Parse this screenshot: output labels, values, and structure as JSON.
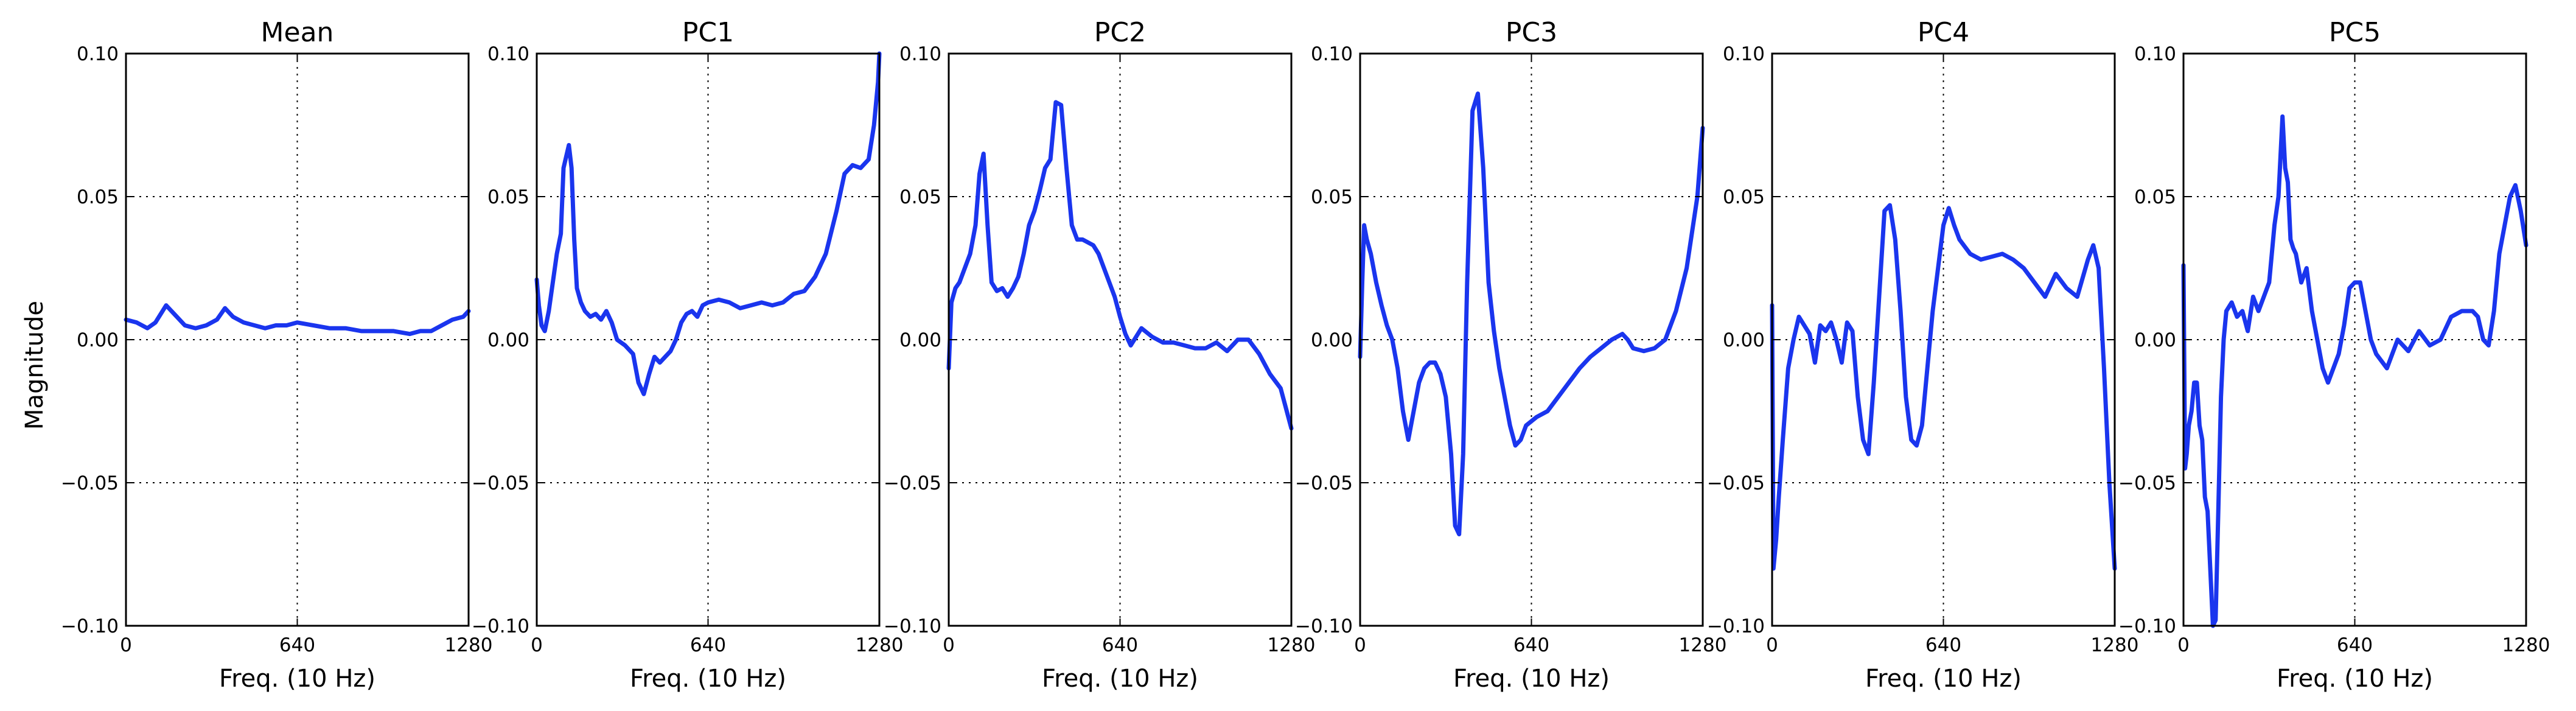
{
  "figure": {
    "ylabel": "Magnitude",
    "line_color": "#1a35ee"
  },
  "chart_data": [
    {
      "type": "line",
      "title": "Mean",
      "xlabel": "Freq. (10 Hz)",
      "ylabel": "Magnitude",
      "xlim": [
        0,
        1280
      ],
      "ylim": [
        -0.1,
        0.1
      ],
      "xticks": [
        "0",
        "640",
        "1280"
      ],
      "yticks": [
        "0.10",
        "0.05",
        "0.00",
        "−0.05",
        "−0.10"
      ],
      "grid": true,
      "x": [
        0,
        40,
        80,
        110,
        150,
        180,
        220,
        260,
        300,
        340,
        370,
        400,
        440,
        480,
        520,
        560,
        600,
        640,
        700,
        760,
        820,
        880,
        940,
        1000,
        1060,
        1100,
        1140,
        1180,
        1220,
        1260,
        1280
      ],
      "y": [
        0.007,
        0.006,
        0.004,
        0.006,
        0.012,
        0.009,
        0.005,
        0.004,
        0.005,
        0.007,
        0.011,
        0.008,
        0.006,
        0.005,
        0.004,
        0.005,
        0.005,
        0.006,
        0.005,
        0.004,
        0.004,
        0.003,
        0.003,
        0.003,
        0.002,
        0.003,
        0.003,
        0.005,
        0.007,
        0.008,
        0.01
      ]
    },
    {
      "type": "line",
      "title": "PC1",
      "xlabel": "Freq. (10 Hz)",
      "xlim": [
        0,
        1280
      ],
      "ylim": [
        -0.1,
        0.1
      ],
      "xticks": [
        "0",
        "640",
        "1280"
      ],
      "yticks": [
        "0.10",
        "0.05",
        "0.00",
        "−0.05",
        "−0.10"
      ],
      "grid": true,
      "x": [
        0,
        8,
        18,
        30,
        45,
        60,
        75,
        90,
        100,
        110,
        120,
        130,
        140,
        150,
        165,
        180,
        200,
        220,
        240,
        260,
        280,
        300,
        330,
        360,
        380,
        400,
        420,
        440,
        460,
        480,
        500,
        520,
        540,
        560,
        580,
        600,
        620,
        640,
        680,
        720,
        760,
        800,
        840,
        880,
        920,
        960,
        1000,
        1040,
        1080,
        1120,
        1150,
        1180,
        1210,
        1240,
        1260,
        1275,
        1280
      ],
      "y": [
        0.021,
        0.012,
        0.005,
        0.003,
        0.01,
        0.02,
        0.03,
        0.037,
        0.06,
        0.064,
        0.068,
        0.06,
        0.035,
        0.018,
        0.013,
        0.01,
        0.008,
        0.009,
        0.007,
        0.01,
        0.006,
        0.0,
        -0.002,
        -0.005,
        -0.015,
        -0.019,
        -0.012,
        -0.006,
        -0.008,
        -0.006,
        -0.004,
        0.0,
        0.006,
        0.009,
        0.01,
        0.008,
        0.012,
        0.013,
        0.014,
        0.013,
        0.011,
        0.012,
        0.013,
        0.012,
        0.013,
        0.016,
        0.017,
        0.022,
        0.03,
        0.045,
        0.058,
        0.061,
        0.06,
        0.063,
        0.075,
        0.09,
        0.1
      ]
    },
    {
      "type": "line",
      "title": "PC2",
      "xlabel": "Freq. (10 Hz)",
      "xlim": [
        0,
        1280
      ],
      "ylim": [
        -0.1,
        0.1
      ],
      "xticks": [
        "0",
        "640",
        "1280"
      ],
      "yticks": [
        "0.10",
        "0.05",
        "0.00",
        "−0.05",
        "−0.10"
      ],
      "grid": true,
      "x": [
        0,
        10,
        25,
        40,
        60,
        80,
        100,
        115,
        130,
        145,
        160,
        180,
        200,
        220,
        240,
        260,
        280,
        300,
        320,
        340,
        360,
        380,
        400,
        420,
        440,
        460,
        480,
        500,
        520,
        540,
        560,
        580,
        600,
        620,
        640,
        660,
        680,
        720,
        760,
        800,
        840,
        880,
        920,
        960,
        1000,
        1040,
        1080,
        1120,
        1160,
        1200,
        1240,
        1280
      ],
      "y": [
        -0.01,
        0.013,
        0.018,
        0.02,
        0.025,
        0.03,
        0.04,
        0.058,
        0.065,
        0.04,
        0.02,
        0.017,
        0.018,
        0.015,
        0.018,
        0.022,
        0.03,
        0.04,
        0.045,
        0.052,
        0.06,
        0.063,
        0.083,
        0.082,
        0.06,
        0.04,
        0.035,
        0.035,
        0.034,
        0.033,
        0.03,
        0.025,
        0.02,
        0.015,
        0.008,
        0.002,
        -0.002,
        0.004,
        0.001,
        -0.001,
        -0.001,
        -0.002,
        -0.003,
        -0.003,
        -0.001,
        -0.004,
        0.0,
        0.0,
        -0.005,
        -0.012,
        -0.017,
        -0.031
      ]
    },
    {
      "type": "line",
      "title": "PC3",
      "xlabel": "Freq. (10 Hz)",
      "xlim": [
        0,
        1280
      ],
      "ylim": [
        -0.1,
        0.1
      ],
      "xticks": [
        "0",
        "640",
        "1280"
      ],
      "yticks": [
        "0.10",
        "0.05",
        "0.00",
        "−0.05",
        "−0.10"
      ],
      "grid": true,
      "x": [
        0,
        8,
        15,
        25,
        40,
        60,
        80,
        100,
        120,
        140,
        160,
        180,
        200,
        220,
        240,
        260,
        280,
        300,
        320,
        340,
        355,
        370,
        385,
        400,
        420,
        440,
        460,
        480,
        500,
        520,
        540,
        560,
        580,
        600,
        620,
        660,
        700,
        740,
        780,
        820,
        860,
        900,
        940,
        980,
        1000,
        1020,
        1060,
        1100,
        1140,
        1180,
        1220,
        1260,
        1280
      ],
      "y": [
        -0.006,
        0.02,
        0.04,
        0.035,
        0.03,
        0.02,
        0.012,
        0.005,
        0.0,
        -0.01,
        -0.025,
        -0.035,
        -0.025,
        -0.015,
        -0.01,
        -0.008,
        -0.008,
        -0.012,
        -0.02,
        -0.04,
        -0.065,
        -0.068,
        -0.04,
        0.02,
        0.08,
        0.086,
        0.06,
        0.02,
        0.003,
        -0.01,
        -0.02,
        -0.03,
        -0.037,
        -0.035,
        -0.03,
        -0.027,
        -0.025,
        -0.02,
        -0.015,
        -0.01,
        -0.006,
        -0.003,
        0.0,
        0.002,
        0.0,
        -0.003,
        -0.004,
        -0.003,
        0.0,
        0.01,
        0.025,
        0.05,
        0.074
      ]
    },
    {
      "type": "line",
      "title": "PC4",
      "xlabel": "Freq. (10 Hz)",
      "xlim": [
        0,
        1280
      ],
      "ylim": [
        -0.1,
        0.1
      ],
      "xticks": [
        "0",
        "640",
        "1280"
      ],
      "yticks": [
        "0.10",
        "0.05",
        "0.00",
        "−0.05",
        "−0.10"
      ],
      "grid": true,
      "x": [
        0,
        5,
        15,
        25,
        40,
        60,
        80,
        100,
        120,
        140,
        160,
        180,
        200,
        220,
        240,
        260,
        280,
        300,
        320,
        340,
        360,
        380,
        400,
        420,
        440,
        460,
        480,
        500,
        520,
        540,
        560,
        580,
        600,
        620,
        640,
        660,
        680,
        700,
        740,
        780,
        820,
        860,
        900,
        940,
        980,
        1020,
        1060,
        1100,
        1140,
        1180,
        1200,
        1220,
        1240,
        1260,
        1280
      ],
      "y": [
        0.012,
        -0.08,
        -0.07,
        -0.055,
        -0.035,
        -0.01,
        0.0,
        0.008,
        0.005,
        0.002,
        -0.008,
        0.005,
        0.003,
        0.006,
        0.0,
        -0.008,
        0.006,
        0.003,
        -0.02,
        -0.035,
        -0.04,
        -0.015,
        0.015,
        0.045,
        0.047,
        0.035,
        0.01,
        -0.02,
        -0.035,
        -0.037,
        -0.03,
        -0.01,
        0.01,
        0.025,
        0.04,
        0.046,
        0.04,
        0.035,
        0.03,
        0.028,
        0.029,
        0.03,
        0.028,
        0.025,
        0.02,
        0.015,
        0.023,
        0.018,
        0.015,
        0.028,
        0.033,
        0.025,
        -0.01,
        -0.05,
        -0.08
      ]
    },
    {
      "type": "line",
      "title": "PC5",
      "xlabel": "Freq. (10 Hz)",
      "xlim": [
        0,
        1280
      ],
      "ylim": [
        -0.1,
        0.1
      ],
      "xticks": [
        "0",
        "640",
        "1280"
      ],
      "yticks": [
        "0.10",
        "0.05",
        "0.00",
        "−0.05",
        "−0.10"
      ],
      "grid": true,
      "x": [
        0,
        6,
        12,
        20,
        30,
        40,
        50,
        60,
        70,
        80,
        90,
        100,
        110,
        120,
        130,
        140,
        150,
        160,
        180,
        200,
        220,
        240,
        260,
        280,
        300,
        320,
        340,
        355,
        370,
        380,
        390,
        400,
        410,
        420,
        440,
        460,
        480,
        500,
        520,
        540,
        560,
        580,
        600,
        620,
        640,
        660,
        680,
        700,
        720,
        760,
        800,
        840,
        880,
        920,
        960,
        1000,
        1040,
        1080,
        1100,
        1120,
        1140,
        1160,
        1180,
        1200,
        1220,
        1240,
        1260,
        1280
      ],
      "y": [
        0.026,
        -0.045,
        -0.04,
        -0.03,
        -0.025,
        -0.015,
        -0.015,
        -0.03,
        -0.035,
        -0.055,
        -0.06,
        -0.08,
        -0.1,
        -0.098,
        -0.06,
        -0.02,
        0.0,
        0.01,
        0.013,
        0.008,
        0.01,
        0.003,
        0.015,
        0.01,
        0.015,
        0.02,
        0.04,
        0.05,
        0.078,
        0.06,
        0.055,
        0.035,
        0.032,
        0.03,
        0.02,
        0.025,
        0.01,
        0.0,
        -0.01,
        -0.015,
        -0.01,
        -0.005,
        0.005,
        0.018,
        0.02,
        0.02,
        0.01,
        0.0,
        -0.005,
        -0.01,
        0.0,
        -0.004,
        0.003,
        -0.002,
        0.0,
        0.008,
        0.01,
        0.01,
        0.008,
        0.0,
        -0.002,
        0.01,
        0.03,
        0.04,
        0.05,
        0.054,
        0.045,
        0.033
      ]
    }
  ]
}
